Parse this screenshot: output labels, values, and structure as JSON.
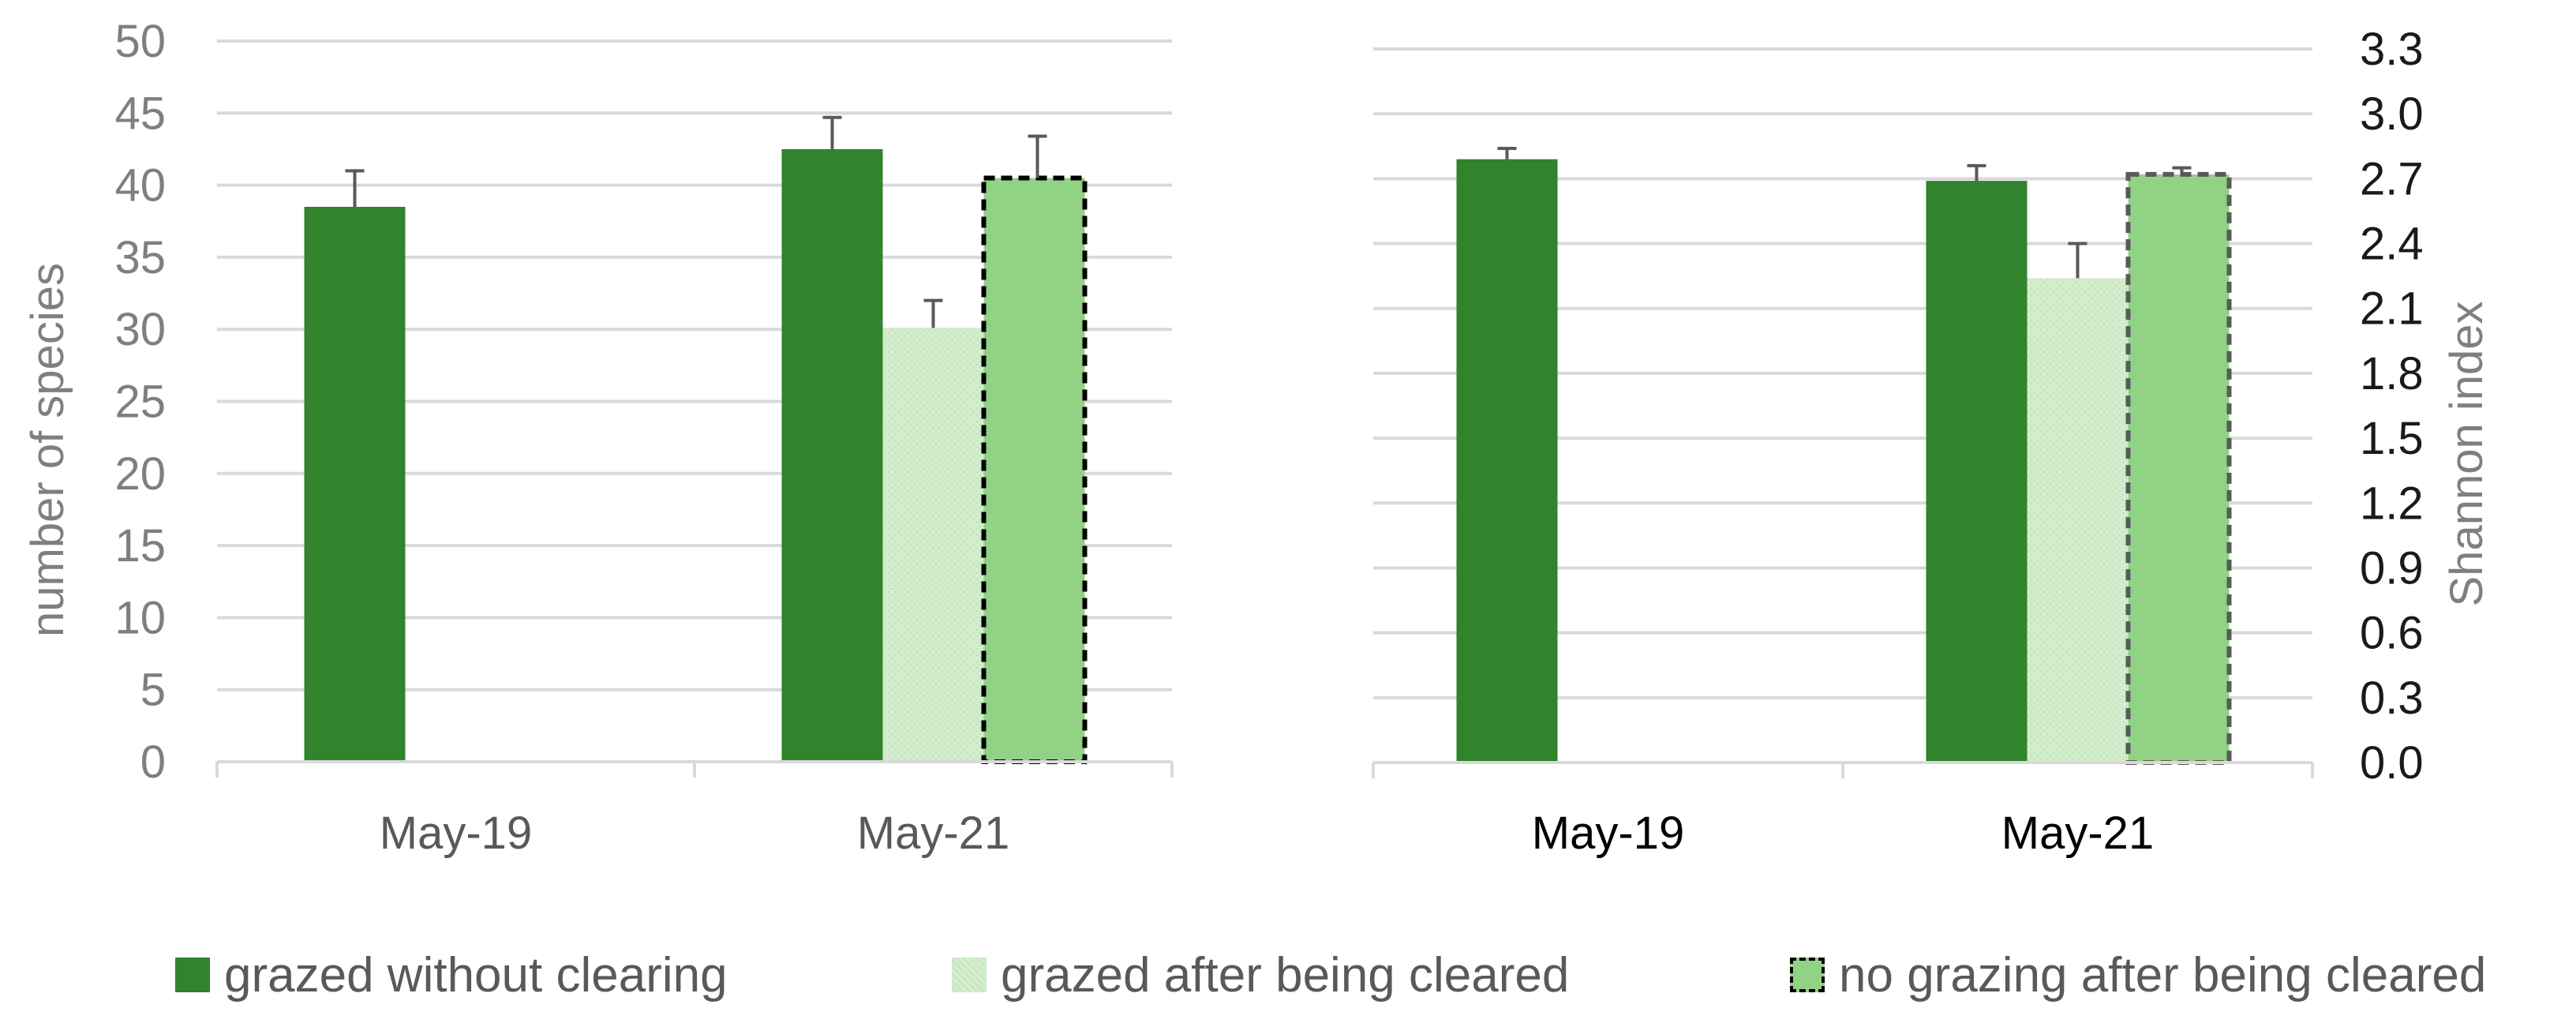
{
  "chart_data": [
    {
      "type": "bar",
      "title": "",
      "xlabel": "",
      "ylabel": "number of species",
      "ylim": [
        0,
        50
      ],
      "yticks": [
        0,
        5,
        10,
        15,
        20,
        25,
        30,
        35,
        40,
        45,
        50
      ],
      "categories": [
        "May-19",
        "May-21"
      ],
      "grid": true,
      "series": [
        {
          "name": "grazed without clearing",
          "values": [
            38.5,
            42.5
          ],
          "errors": [
            2.5,
            2.2
          ]
        },
        {
          "name": "grazed after being cleared",
          "values": [
            null,
            30.1
          ],
          "errors": [
            null,
            1.9
          ]
        },
        {
          "name": "no grazing after being cleared",
          "values": [
            null,
            40.5
          ],
          "errors": [
            null,
            2.9
          ]
        }
      ]
    },
    {
      "type": "bar",
      "title": "",
      "xlabel": "",
      "ylabel": "Shannon index",
      "ylim": [
        0,
        3.3
      ],
      "yticks": [
        "0.0",
        "0.3",
        "0.6",
        "0.9",
        "1.2",
        "1.5",
        "1.8",
        "2.1",
        "2.4",
        "2.7",
        "3.0",
        "3.3"
      ],
      "categories": [
        "May-19",
        "May-21"
      ],
      "grid": true,
      "series": [
        {
          "name": "grazed without clearing",
          "values": [
            2.79,
            2.69
          ],
          "errors": [
            0.05,
            0.07
          ]
        },
        {
          "name": "grazed after being cleared",
          "values": [
            null,
            2.24
          ],
          "errors": [
            null,
            0.16
          ]
        },
        {
          "name": "no grazing after being cleared",
          "values": [
            null,
            2.72
          ],
          "errors": [
            null,
            0.03
          ]
        }
      ]
    }
  ],
  "legend": {
    "position": "bottom",
    "items": [
      {
        "label": "grazed without clearing",
        "color": "#31832C"
      },
      {
        "label": "grazed after being cleared",
        "color": "#D3EDCD"
      },
      {
        "label": "no grazing after being cleared",
        "color": "#92D285"
      }
    ]
  },
  "colors": {
    "grazed_without_clearing": "#31832C",
    "grazed_after_cleared": "#D3EDCD",
    "no_grazing_after_cleared": "#92D285",
    "grid": "#D9D9D9",
    "axis_text_left": "#7F7F7F",
    "axis_text_right": "#1A1A1A"
  }
}
